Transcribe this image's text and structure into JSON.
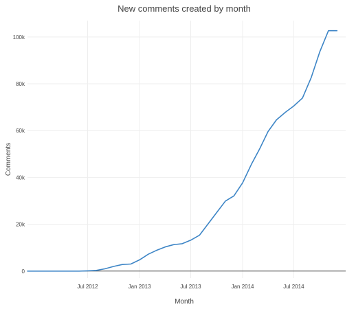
{
  "chart_data": {
    "type": "line",
    "title": "New comments created by month",
    "xlabel": "Month",
    "ylabel": "Comments",
    "grid": true,
    "legend": "none",
    "x_ticks": [
      "Jul 2012",
      "Jan 2013",
      "Jul 2013",
      "Jan 2014",
      "Jul 2014"
    ],
    "y_ticks": [
      "0",
      "20k",
      "40k",
      "60k",
      "80k",
      "100k"
    ],
    "xlim": [
      "2011-12-01",
      "2015-01-01"
    ],
    "ylim": [
      -3000,
      107000
    ],
    "series": [
      {
        "color": "#3d85c6",
        "x": [
          "2011-12-01",
          "2012-01-01",
          "2012-02-01",
          "2012-03-01",
          "2012-04-01",
          "2012-05-01",
          "2012-06-01",
          "2012-07-01",
          "2012-08-01",
          "2012-09-01",
          "2012-10-01",
          "2012-11-01",
          "2012-12-01",
          "2013-01-01",
          "2013-02-01",
          "2013-03-01",
          "2013-04-01",
          "2013-05-01",
          "2013-06-01",
          "2013-07-01",
          "2013-08-01",
          "2013-09-01",
          "2013-10-01",
          "2013-11-01",
          "2013-12-01",
          "2014-01-01",
          "2014-02-01",
          "2014-03-01",
          "2014-04-01",
          "2014-05-01",
          "2014-06-01",
          "2014-07-01",
          "2014-08-01",
          "2014-09-01",
          "2014-10-01",
          "2014-11-01",
          "2014-12-01"
        ],
        "values": [
          0,
          0,
          0,
          0,
          0,
          0,
          0,
          100,
          300,
          1000,
          2000,
          2800,
          3000,
          4800,
          7200,
          8800,
          10300,
          11300,
          11700,
          13200,
          15300,
          20200,
          25000,
          29900,
          32100,
          37700,
          45600,
          51900,
          59600,
          64600,
          67800,
          70500,
          73900,
          82700,
          93600,
          102700,
          102700
        ]
      }
    ]
  }
}
